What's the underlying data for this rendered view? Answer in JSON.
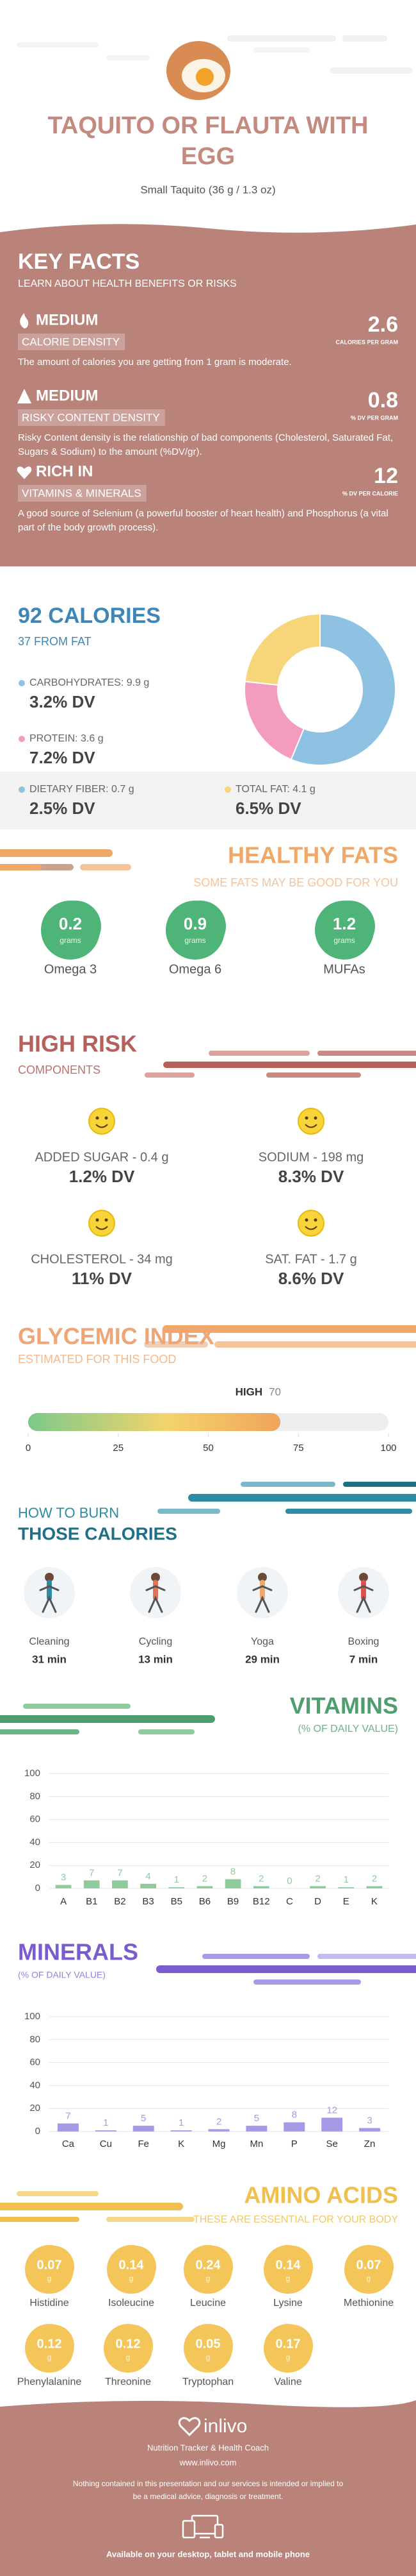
{
  "header": {
    "title": "TAQUITO OR FLAUTA WITH EGG",
    "subtitle": "Small Taquito (36 g / 1.3 oz)"
  },
  "key_facts": {
    "title": "KEY FACTS",
    "subtitle": "LEARN ABOUT HEALTH BENEFITS OR RISKS",
    "items": [
      {
        "level": "MEDIUM",
        "name": "CALORIE DENSITY",
        "value": 2.6,
        "unit": "CALORIES PER GRAM",
        "text": "The amount of calories you are getting from 1 gram is moderate."
      },
      {
        "level": "MEDIUM",
        "name": "RISKY CONTENT DENSITY",
        "value": 0.8,
        "unit": "% DV PER GRAM",
        "text": "Risky Content density is the relationship of bad components (Cholesterol, Saturated Fat, Sugars & Sodium) to the amount (%DV/gr)."
      },
      {
        "level": "RICH IN",
        "name": "VITAMINS & MINERALS",
        "value": 12,
        "unit": "% DV PER CALORIE",
        "text": "A good source of Selenium (a powerful booster of heart health) and Phosphorus (a vital part of the body growth process)."
      }
    ]
  },
  "calories": {
    "title": "92 CALORIES",
    "subtitle": "37 FROM FAT",
    "nutrients": [
      {
        "label": "CARBOHYDRATES: 9.9 g",
        "dv": "3.2% DV",
        "color": "#8fc1e3"
      },
      {
        "label": "PROTEIN: 3.6 g",
        "dv": "7.2% DV",
        "color": "#f49cc0"
      },
      {
        "label": "DIETARY FIBER: 0.7 g",
        "dv": "2.5% DV",
        "color": "#8fc1e3"
      },
      {
        "label": "TOTAL FAT: 4.1 g",
        "dv": "6.5% DV",
        "color": "#f7d57a"
      }
    ]
  },
  "healthy_fats": {
    "title": "HEALTHY FATS",
    "subtitle": "SOME FATS MAY BE GOOD FOR YOU",
    "unit": "grams",
    "items": [
      {
        "value": 0.2,
        "name": "Omega 3"
      },
      {
        "value": 0.9,
        "name": "Omega 6"
      },
      {
        "value": 1.2,
        "name": "MUFAs"
      }
    ]
  },
  "high_risk": {
    "title": "HIGH RISK",
    "subtitle": "COMPONENTS",
    "items": [
      {
        "label": "ADDED SUGAR - 0.4 g",
        "dv": "1.2% DV"
      },
      {
        "label": "SODIUM - 198 mg",
        "dv": "8.3% DV"
      },
      {
        "label": "CHOLESTEROL - 34 mg",
        "dv": "11% DV"
      },
      {
        "label": "SAT. FAT - 1.7 g",
        "dv": "8.6% DV"
      }
    ]
  },
  "burn": {
    "title_1": "HOW TO BURN",
    "title_2": "THOSE CALORIES",
    "items": [
      {
        "name": "Cleaning",
        "time": "31 min"
      },
      {
        "name": "Cycling",
        "time": "13 min"
      },
      {
        "name": "Yoga",
        "time": "29 min"
      },
      {
        "name": "Boxing",
        "time": "7 min"
      }
    ]
  },
  "amino_acids": {
    "title": "AMINO ACIDS",
    "subtitle": "THESE ARE ESSENTIAL FOR YOUR BODY",
    "unit": "g",
    "items": [
      {
        "value": 0.07,
        "name": "Histidine"
      },
      {
        "value": 0.14,
        "name": "Isoleucine"
      },
      {
        "value": 0.24,
        "name": "Leucine"
      },
      {
        "value": 0.14,
        "name": "Lysine"
      },
      {
        "value": 0.07,
        "name": "Methionine"
      },
      {
        "value": 0.12,
        "name": "Phenylalanine"
      },
      {
        "value": 0.12,
        "name": "Threonine"
      },
      {
        "value": 0.05,
        "name": "Tryptophan"
      },
      {
        "value": 0.17,
        "name": "Valine"
      }
    ]
  },
  "footer": {
    "brand": "inlivo",
    "tagline": "Nutrition Tracker & Health Coach",
    "url": "www.inlivo.com",
    "disclaimer": "Nothing contained in this presentation and our services is intended or implied to be a medical advice, diagnosis or treatment.",
    "available": "Available on your desktop, tablet and mobile phone"
  },
  "chart_data": [
    {
      "type": "pie",
      "values": [
        9.9,
        3.6,
        4.1
      ],
      "colors": [
        "#8fc1e3",
        "#f49cc0",
        "#f7d57a"
      ]
    },
    {
      "type": "gauge",
      "title": "GLYCEMIC INDEX",
      "subtitle": "ESTIMATED FOR THIS FOOD",
      "label": "HIGH",
      "value": 70,
      "xlim": [
        0,
        100
      ],
      "xticks": [
        0,
        25,
        50,
        75,
        100
      ]
    },
    {
      "type": "bar",
      "title": "VITAMINS",
      "subtitle": "(% OF DAILY VALUE)",
      "categories": [
        "A",
        "B1",
        "B2",
        "B3",
        "B5",
        "B6",
        "B9",
        "B12",
        "C",
        "D",
        "E",
        "K"
      ],
      "values": [
        3,
        7,
        7,
        4,
        1,
        2,
        8,
        2,
        0,
        2,
        1,
        2
      ],
      "color": "#8fcb9c",
      "ylim": [
        0,
        100
      ],
      "yticks": [
        0,
        20,
        40,
        60,
        80,
        100
      ],
      "grid": true
    },
    {
      "type": "bar",
      "title": "MINERALS",
      "subtitle": "(% OF DAILY VALUE)",
      "categories": [
        "Ca",
        "Cu",
        "Fe",
        "K",
        "Mg",
        "Mn",
        "P",
        "Se",
        "Zn"
      ],
      "values": [
        7,
        1,
        5,
        1,
        2,
        5,
        8,
        12,
        3
      ],
      "color": "#a69ae6",
      "ylim": [
        0,
        100
      ],
      "yticks": [
        0,
        20,
        40,
        60,
        80,
        100
      ],
      "grid": true
    }
  ]
}
